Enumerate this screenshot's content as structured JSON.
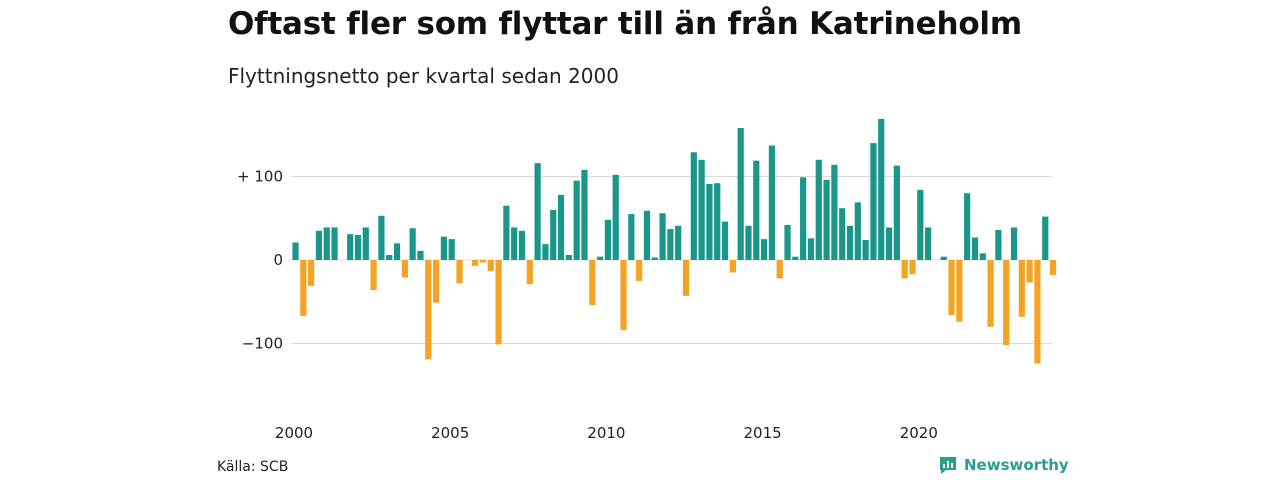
{
  "header": {
    "title": "Oftast fler som flyttar till än från Katrineholm",
    "subtitle": "Flyttningsnetto per kvartal sedan 2000"
  },
  "footer": {
    "source": "Källa: SCB",
    "brand": "Newsworthy"
  },
  "colors": {
    "positive": "#1a968a",
    "negative": "#f4a322",
    "grid": "#d9d9d9",
    "brand": "#2a9d8f"
  },
  "chart_data": {
    "type": "bar",
    "x_start": "2000 Q1",
    "x_ticks": [
      "2000",
      "2005",
      "2010",
      "2015",
      "2020"
    ],
    "y_ticks": [
      {
        "value": 100,
        "label": "+ 100"
      },
      {
        "value": 0,
        "label": "0"
      },
      {
        "value": -100,
        "label": "−100"
      }
    ],
    "ylim": [
      -160,
      190
    ],
    "grid": true,
    "values": [
      21,
      -67,
      -31,
      35,
      39,
      39,
      0,
      31,
      30,
      39,
      -36,
      53,
      6,
      20,
      -21,
      38,
      11,
      -119,
      -51,
      28,
      25,
      -28,
      0,
      -7,
      -3,
      -13,
      -101,
      65,
      39,
      35,
      -29,
      116,
      19,
      60,
      78,
      6,
      95,
      108,
      -54,
      4,
      48,
      102,
      -84,
      55,
      -25,
      59,
      3,
      56,
      37,
      41,
      -43,
      129,
      120,
      91,
      92,
      46,
      -15,
      158,
      41,
      119,
      25,
      137,
      -22,
      42,
      4,
      99,
      26,
      120,
      96,
      114,
      62,
      41,
      69,
      24,
      140,
      169,
      39,
      113,
      -22,
      -17,
      84,
      39,
      0,
      4,
      -66,
      -74,
      80,
      27,
      8,
      -80,
      36,
      -102,
      39,
      -68,
      -27,
      -124,
      52,
      -18
    ]
  }
}
